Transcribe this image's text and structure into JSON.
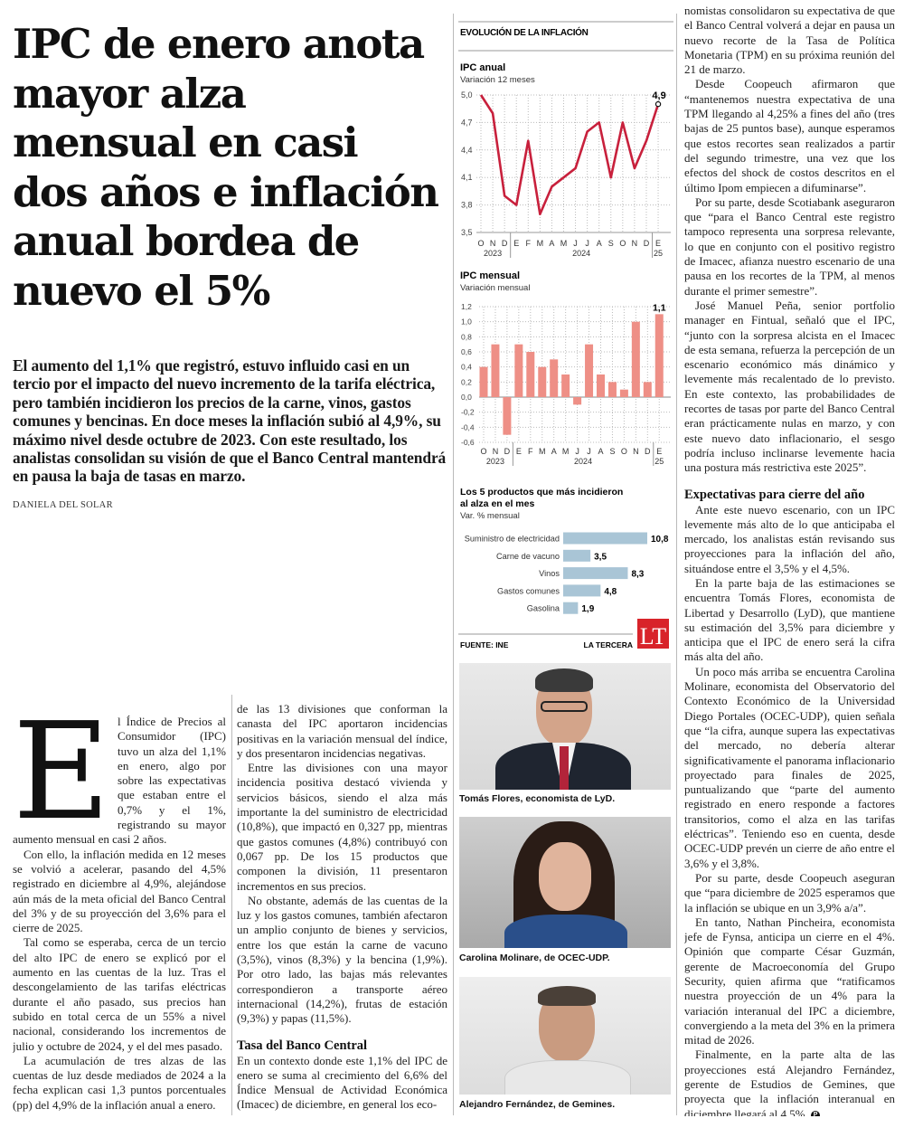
{
  "headline": {
    "lines": [
      "IPC de enero anota",
      "mayor alza",
      "mensual en casi",
      "dos años e inflación",
      "anual bordea de",
      "nuevo el 5%"
    ]
  },
  "deck": "El aumento del 1,1% que registró, estuvo influido casi en un tercio por el impacto del nuevo incremento de la tarifa eléctrica, pero también incidieron los precios de la carne, vinos, gastos comunes y bencinas. En doce meses la inflación subió al 4,9%, su máximo nivel desde octubre de 2023. Con este resultado, los analistas consolidan su visión de que el Banco Central mantendrá en pausa la baja de tasas en marzo.",
  "byline": "DANIELA DEL SOLAR",
  "body": {
    "dropcap": "E",
    "col1": [
      {
        "type": "p",
        "dropcap": true,
        "text": "l Índice de Precios al Consumidor (IPC) tuvo un alza del 1,1% en enero, algo por sobre las expectativas que estaban entre el 0,7% y el 1%, registrando su mayor aumento mensual en casi 2 años."
      },
      {
        "type": "p",
        "text": "Con ello, la inflación medida en 12 meses se volvió a acelerar, pasando del 4,5% registrado en diciembre al 4,9%, alejándose aún más de la meta oficial del Banco Central del 3% y de su proyección del 3,6% para el cierre de 2025."
      },
      {
        "type": "p",
        "text": "Tal como se esperaba, cerca de un tercio del alto IPC de enero se explicó por el aumento en las cuentas de la luz. Tras el descongelamiento de las tarifas eléctricas durante el año pasado, sus precios han subido en total cerca de un 55% a nivel nacional, considerando los incrementos de julio y octubre de 2024, y el del mes pasado."
      },
      {
        "type": "p",
        "text": "La acumulación de tres alzas de las cuentas de luz desde mediados de 2024 a la fecha explican casi 1,3 puntos porcentuales (pp) del 4,9% de la inflación anual a enero."
      },
      {
        "type": "p",
        "text": "De acuerdo con lo que informó el Instituto Nacional de Estadísticas (INE), esta vez 11"
      }
    ],
    "col2": [
      {
        "type": "p",
        "noindent": true,
        "text": "de las 13 divisiones que conforman la canasta del IPC aportaron incidencias positivas en la variación mensual del índice, y dos presentaron incidencias negativas."
      },
      {
        "type": "p",
        "text": "Entre las divisiones con una mayor incidencia positiva destacó vivienda y servicios básicos, siendo el alza más importante la del suministro de electricidad (10,8%), que impactó en 0,327 pp, mientras que gastos comunes (4,8%) contribuyó con 0,067 pp. De los 15 productos que componen la división, 11 presentaron incrementos en sus precios."
      },
      {
        "type": "p",
        "text": "No obstante, además de las cuentas de la luz y los gastos comunes, también afectaron un amplio conjunto de bienes y servicios, entre los que están la carne de vacuno (3,5%), vinos (8,3%) y la bencina (1,9%). Por otro lado, las bajas más relevantes correspondieron a transporte aéreo internacional (14,2%), frutas de estación (9,3%) y papas (11,5%)."
      },
      {
        "type": "h",
        "text": "Tasa del Banco Central"
      },
      {
        "type": "p",
        "noindent": true,
        "text": "En un contexto donde este 1,1% del IPC de enero se suma al crecimiento del 6,6% del Índice Mensual de Actividad Económica (Imacec) de diciembre, en general los eco-"
      }
    ],
    "col3": [
      {
        "type": "p",
        "noindent": true,
        "text": "nomistas consolidaron su expectativa de que el Banco Central volverá a dejar en pausa un nuevo recorte de la Tasa de Política Monetaria (TPM) en su próxima reunión del 21 de marzo."
      },
      {
        "type": "p",
        "text": "Desde Coopeuch afirmaron que “mantenemos nuestra expectativa de una TPM llegando al 4,25% a fines del año (tres bajas de 25 puntos base), aunque esperamos que estos recortes sean realizados a partir del segundo trimestre, una vez que los efectos del shock de costos descritos en el último Ipom empiecen a difuminarse”."
      },
      {
        "type": "p",
        "text": "Por su parte, desde Scotiabank aseguraron que “para el Banco Central este registro tampoco representa una sorpresa relevante, lo que en conjunto con el positivo registro de Imacec, afianza nuestro escenario de una pausa en los recortes de la TPM, al menos durante el primer semestre”."
      },
      {
        "type": "p",
        "text": "José Manuel Peña, senior portfolio manager en Fintual, señaló que el IPC, “junto con la sorpresa alcista en el Imacec de esta semana, refuerza la percepción de un escenario económico más dinámico y levemente más recalentado de lo previsto. En este contexto, las probabilidades de recortes de tasas por parte del Banco Central eran prácticamente nulas en marzo, y con este nuevo dato inflacionario, el sesgo podría incluso inclinarse levemente hacia una postura más restrictiva este 2025”."
      },
      {
        "type": "h",
        "text": "Expectativas para cierre del año"
      },
      {
        "type": "p",
        "text": "Ante este nuevo escenario, con un IPC levemente más alto de lo que anticipaba el mercado, los analistas están revisando sus proyecciones para la inflación del año, situándose entre el 3,5% y el 4,5%."
      },
      {
        "type": "p",
        "text": "En la parte baja de las estimaciones se encuentra Tomás Flores, economista de Libertad y Desarrollo (LyD), que mantiene su estimación del 3,5% para diciembre y anticipa que el IPC de enero será la cifra más alta del año."
      },
      {
        "type": "p",
        "text": "Un poco más arriba se encuentra Carolina Molinare, economista del Observatorio del Contexto Económico de la Universidad Diego Portales (OCEC-UDP), quien señala que “la cifra, aunque supera las expectativas del mercado, no debería alterar significativamente el panorama inflacionario proyectado para finales de 2025, puntualizando que “parte del aumento registrado en enero responde a factores transitorios, como el alza en las tarifas eléctricas”. Teniendo eso en cuenta, desde OCEC-UDP prevén un cierre de año entre el 3,6% y el 3,8%."
      },
      {
        "type": "p",
        "text": "Por su parte, desde Coopeuch aseguran que “para diciembre de 2025 esperamos que la inflación se ubique en un 3,9% a/a”."
      },
      {
        "type": "p",
        "text": "En tanto, Nathan Pincheira, economista jefe de Fynsa, anticipa un cierre en el 4%. Opinión que comparte César Guzmán, gerente de Macroeconomía del Grupo Security, quien afirma que “ratificamos nuestra proyección de un 4% para la variación interanual del IPC a diciembre, convergiendo a la meta del 3% en la primera mitad de 2026."
      },
      {
        "type": "p",
        "endmark": true,
        "text": "Finalmente, en la parte alta de las proyecciones está Alejandro Fernández, gerente de Estudios de Gemines, que proyecta que la inflación interanual en diciembre llegará al 4,5%."
      }
    ],
    "endmark": "P"
  },
  "infographic": {
    "title": "EVOLUCIÓN DE LA INFLACIÓN",
    "source": "FUENTE: INE",
    "publisher": "LA TERCERA",
    "logo": "LT",
    "colors": {
      "line": "#c8203c",
      "bars": "#ee8f86",
      "hbars": "#a9c5d6",
      "logo": "#d8232a"
    }
  },
  "chart_data": [
    {
      "type": "line",
      "title": "IPC anual",
      "subtitle": "Variación 12 meses",
      "categories": [
        "O",
        "N",
        "D",
        "E",
        "F",
        "M",
        "A",
        "M",
        "J",
        "J",
        "A",
        "S",
        "O",
        "N",
        "D",
        "E"
      ],
      "years": [
        {
          "label": "2023",
          "from": 0,
          "to": 2
        },
        {
          "label": "2024",
          "from": 3,
          "to": 14
        },
        {
          "label": "25",
          "from": 15,
          "to": 15
        }
      ],
      "values": [
        5.0,
        4.8,
        3.9,
        3.8,
        4.5,
        3.7,
        4.0,
        4.1,
        4.2,
        4.6,
        4.7,
        4.1,
        4.7,
        4.2,
        4.5,
        4.9
      ],
      "ylim": [
        3.5,
        5.0
      ],
      "yticks": [
        5.0,
        4.7,
        4.4,
        4.1,
        3.8,
        3.5
      ],
      "ytick_labels": [
        "5,0",
        "4,7",
        "4,4",
        "4,1",
        "3,8",
        "3,5"
      ],
      "last_label": "4,9",
      "grid": true
    },
    {
      "type": "bar",
      "title": "IPC mensual",
      "subtitle": "Variación mensual",
      "categories": [
        "O",
        "N",
        "D",
        "E",
        "F",
        "M",
        "A",
        "M",
        "J",
        "J",
        "A",
        "S",
        "O",
        "N",
        "D",
        "E"
      ],
      "years": [
        {
          "label": "2023",
          "from": 0,
          "to": 2
        },
        {
          "label": "2024",
          "from": 3,
          "to": 14
        },
        {
          "label": "25",
          "from": 15,
          "to": 15
        }
      ],
      "values": [
        0.4,
        0.7,
        -0.5,
        0.7,
        0.6,
        0.4,
        0.5,
        0.3,
        -0.1,
        0.7,
        0.3,
        0.2,
        0.1,
        1.0,
        0.2,
        1.1
      ],
      "ylim": [
        -0.6,
        1.2
      ],
      "yticks": [
        1.2,
        1.0,
        0.8,
        0.6,
        0.4,
        0.2,
        0.0,
        -0.2,
        -0.4,
        -0.6
      ],
      "ytick_labels": [
        "1,2",
        "1,0",
        "0,8",
        "0,6",
        "0,4",
        "0,2",
        "0,0",
        "-0,2",
        "-0,4",
        "-0,6"
      ],
      "last_label": "1,1",
      "grid": true
    },
    {
      "type": "bar",
      "orientation": "horizontal",
      "title_lines": [
        "Los 5 productos que más incidieron",
        "al alza en el mes"
      ],
      "subtitle": "Var. % mensual",
      "categories": [
        "Suministro de electricidad",
        "Carne de vacuno",
        "Vinos",
        "Gastos comunes",
        "Gasolina"
      ],
      "values": [
        10.8,
        3.5,
        8.3,
        4.8,
        1.9
      ],
      "value_labels": [
        "10,8",
        "3,5",
        "8,3",
        "4,8",
        "1,9"
      ]
    }
  ],
  "photos": [
    {
      "caption": "Tomás Flores, economista de LyD."
    },
    {
      "caption": "Carolina Molinare, de OCEC-UDP."
    },
    {
      "caption": "Alejandro Fernández, de Gemines."
    }
  ]
}
